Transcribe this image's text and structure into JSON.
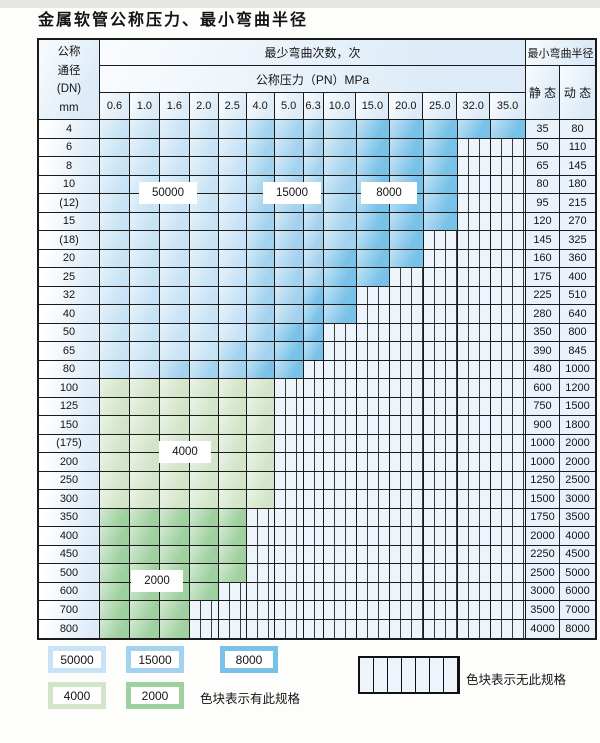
{
  "title": "金属软管公称压力、最小弯曲半径",
  "table": {
    "corner_lines": [
      "公称",
      "通径",
      "(DN)",
      "mm"
    ],
    "bend_cycles_header": "最少弯曲次数，次",
    "pressure_header": "公称压力（PN）MPa",
    "radius_header": "最小弯曲半径",
    "static_label": "静 态",
    "dynamic_label": "动 态"
  },
  "labels": {
    "l50000": "50000",
    "l15000": "15000",
    "l8000": "8000",
    "l4000": "4000",
    "l2000": "2000"
  },
  "legend": {
    "has_spec_text": "色块表示有此规格",
    "no_spec_text": "色块表示无此规格"
  },
  "colors": {
    "cycles_50000": "#c8e3f5",
    "cycles_15000": "#a3d2ee",
    "cycles_8000": "#78c1e8",
    "cycles_4000": "#d3e5c9",
    "cycles_2000": "#9fd09f",
    "hatch_background": "#eef4fb",
    "header_background": "#dcebf7",
    "grid_line": "#1b1b1b"
  },
  "chart_data": {
    "type": "table",
    "title": "金属软管公称压力、最小弯曲半径",
    "xlabel": "公称压力（PN）MPa",
    "ylabel": "公称通径(DN) mm",
    "value_meaning": "最少弯曲次数，次 (bend cycles); null = 无此规格 (no such specification)",
    "bend_cycle_levels": [
      50000,
      15000,
      8000,
      4000,
      2000
    ],
    "pressure_columns": [
      "0.6",
      "1.0",
      "1.6",
      "2.0",
      "2.5",
      "4.0",
      "5.0",
      "6.3",
      "10.0",
      "15.0",
      "20.0",
      "25.0",
      "32.0",
      "35.0"
    ],
    "radius_columns": [
      "静 态",
      "动 态"
    ],
    "rows": [
      {
        "dn": "4",
        "static": 35,
        "dynamic": 80,
        "cycles": [
          50000,
          50000,
          50000,
          50000,
          50000,
          15000,
          15000,
          15000,
          15000,
          8000,
          8000,
          8000,
          8000,
          8000
        ]
      },
      {
        "dn": "6",
        "static": 50,
        "dynamic": 110,
        "cycles": [
          50000,
          50000,
          50000,
          50000,
          50000,
          15000,
          15000,
          15000,
          15000,
          8000,
          8000,
          8000,
          null,
          null
        ]
      },
      {
        "dn": "8",
        "static": 65,
        "dynamic": 145,
        "cycles": [
          50000,
          50000,
          50000,
          50000,
          50000,
          15000,
          15000,
          15000,
          15000,
          8000,
          8000,
          8000,
          null,
          null
        ]
      },
      {
        "dn": "10",
        "static": 80,
        "dynamic": 180,
        "cycles": [
          50000,
          50000,
          50000,
          50000,
          50000,
          15000,
          15000,
          15000,
          15000,
          8000,
          8000,
          8000,
          null,
          null
        ]
      },
      {
        "dn": "(12)",
        "static": 95,
        "dynamic": 215,
        "cycles": [
          50000,
          50000,
          50000,
          50000,
          50000,
          15000,
          15000,
          15000,
          15000,
          8000,
          8000,
          8000,
          null,
          null
        ]
      },
      {
        "dn": "15",
        "static": 120,
        "dynamic": 270,
        "cycles": [
          50000,
          50000,
          50000,
          50000,
          50000,
          15000,
          15000,
          15000,
          15000,
          8000,
          8000,
          8000,
          null,
          null
        ]
      },
      {
        "dn": "(18)",
        "static": 145,
        "dynamic": 325,
        "cycles": [
          50000,
          50000,
          50000,
          50000,
          50000,
          15000,
          15000,
          15000,
          15000,
          8000,
          8000,
          null,
          null,
          null
        ]
      },
      {
        "dn": "20",
        "static": 160,
        "dynamic": 360,
        "cycles": [
          50000,
          50000,
          50000,
          50000,
          50000,
          15000,
          15000,
          15000,
          8000,
          8000,
          8000,
          null,
          null,
          null
        ]
      },
      {
        "dn": "25",
        "static": 175,
        "dynamic": 400,
        "cycles": [
          50000,
          50000,
          50000,
          50000,
          50000,
          15000,
          15000,
          15000,
          8000,
          8000,
          null,
          null,
          null,
          null
        ]
      },
      {
        "dn": "32",
        "static": 225,
        "dynamic": 510,
        "cycles": [
          50000,
          50000,
          50000,
          50000,
          50000,
          15000,
          15000,
          8000,
          8000,
          null,
          null,
          null,
          null,
          null
        ]
      },
      {
        "dn": "40",
        "static": 280,
        "dynamic": 640,
        "cycles": [
          50000,
          50000,
          50000,
          50000,
          50000,
          15000,
          15000,
          8000,
          8000,
          null,
          null,
          null,
          null,
          null
        ]
      },
      {
        "dn": "50",
        "static": 350,
        "dynamic": 800,
        "cycles": [
          50000,
          50000,
          50000,
          50000,
          50000,
          15000,
          8000,
          8000,
          null,
          null,
          null,
          null,
          null,
          null
        ]
      },
      {
        "dn": "65",
        "static": 390,
        "dynamic": 845,
        "cycles": [
          50000,
          50000,
          50000,
          50000,
          15000,
          15000,
          8000,
          8000,
          null,
          null,
          null,
          null,
          null,
          null
        ]
      },
      {
        "dn": "80",
        "static": 480,
        "dynamic": 1000,
        "cycles": [
          50000,
          50000,
          15000,
          15000,
          15000,
          8000,
          8000,
          null,
          null,
          null,
          null,
          null,
          null,
          null
        ]
      },
      {
        "dn": "100",
        "static": 600,
        "dynamic": 1200,
        "cycles": [
          4000,
          4000,
          4000,
          4000,
          4000,
          4000,
          null,
          null,
          null,
          null,
          null,
          null,
          null,
          null
        ]
      },
      {
        "dn": "125",
        "static": 750,
        "dynamic": 1500,
        "cycles": [
          4000,
          4000,
          4000,
          4000,
          4000,
          4000,
          null,
          null,
          null,
          null,
          null,
          null,
          null,
          null
        ]
      },
      {
        "dn": "150",
        "static": 900,
        "dynamic": 1800,
        "cycles": [
          4000,
          4000,
          4000,
          4000,
          4000,
          4000,
          null,
          null,
          null,
          null,
          null,
          null,
          null,
          null
        ]
      },
      {
        "dn": "(175)",
        "static": 1000,
        "dynamic": 2000,
        "cycles": [
          4000,
          4000,
          4000,
          4000,
          4000,
          4000,
          null,
          null,
          null,
          null,
          null,
          null,
          null,
          null
        ]
      },
      {
        "dn": "200",
        "static": 1000,
        "dynamic": 2000,
        "cycles": [
          4000,
          4000,
          4000,
          4000,
          4000,
          4000,
          null,
          null,
          null,
          null,
          null,
          null,
          null,
          null
        ]
      },
      {
        "dn": "250",
        "static": 1250,
        "dynamic": 2500,
        "cycles": [
          4000,
          4000,
          4000,
          4000,
          4000,
          4000,
          null,
          null,
          null,
          null,
          null,
          null,
          null,
          null
        ]
      },
      {
        "dn": "300",
        "static": 1500,
        "dynamic": 3000,
        "cycles": [
          4000,
          4000,
          4000,
          4000,
          4000,
          4000,
          null,
          null,
          null,
          null,
          null,
          null,
          null,
          null
        ]
      },
      {
        "dn": "350",
        "static": 1750,
        "dynamic": 3500,
        "cycles": [
          2000,
          2000,
          2000,
          2000,
          2000,
          null,
          null,
          null,
          null,
          null,
          null,
          null,
          null,
          null
        ]
      },
      {
        "dn": "400",
        "static": 2000,
        "dynamic": 4000,
        "cycles": [
          2000,
          2000,
          2000,
          2000,
          2000,
          null,
          null,
          null,
          null,
          null,
          null,
          null,
          null,
          null
        ]
      },
      {
        "dn": "450",
        "static": 2250,
        "dynamic": 4500,
        "cycles": [
          2000,
          2000,
          2000,
          2000,
          2000,
          null,
          null,
          null,
          null,
          null,
          null,
          null,
          null,
          null
        ]
      },
      {
        "dn": "500",
        "static": 2500,
        "dynamic": 5000,
        "cycles": [
          2000,
          2000,
          2000,
          2000,
          2000,
          null,
          null,
          null,
          null,
          null,
          null,
          null,
          null,
          null
        ]
      },
      {
        "dn": "600",
        "static": 3000,
        "dynamic": 6000,
        "cycles": [
          2000,
          2000,
          2000,
          2000,
          null,
          null,
          null,
          null,
          null,
          null,
          null,
          null,
          null,
          null
        ]
      },
      {
        "dn": "700",
        "static": 3500,
        "dynamic": 7000,
        "cycles": [
          2000,
          2000,
          2000,
          null,
          null,
          null,
          null,
          null,
          null,
          null,
          null,
          null,
          null,
          null
        ]
      },
      {
        "dn": "800",
        "static": 4000,
        "dynamic": 8000,
        "cycles": [
          2000,
          2000,
          2000,
          null,
          null,
          null,
          null,
          null,
          null,
          null,
          null,
          null,
          null,
          null
        ]
      }
    ]
  }
}
